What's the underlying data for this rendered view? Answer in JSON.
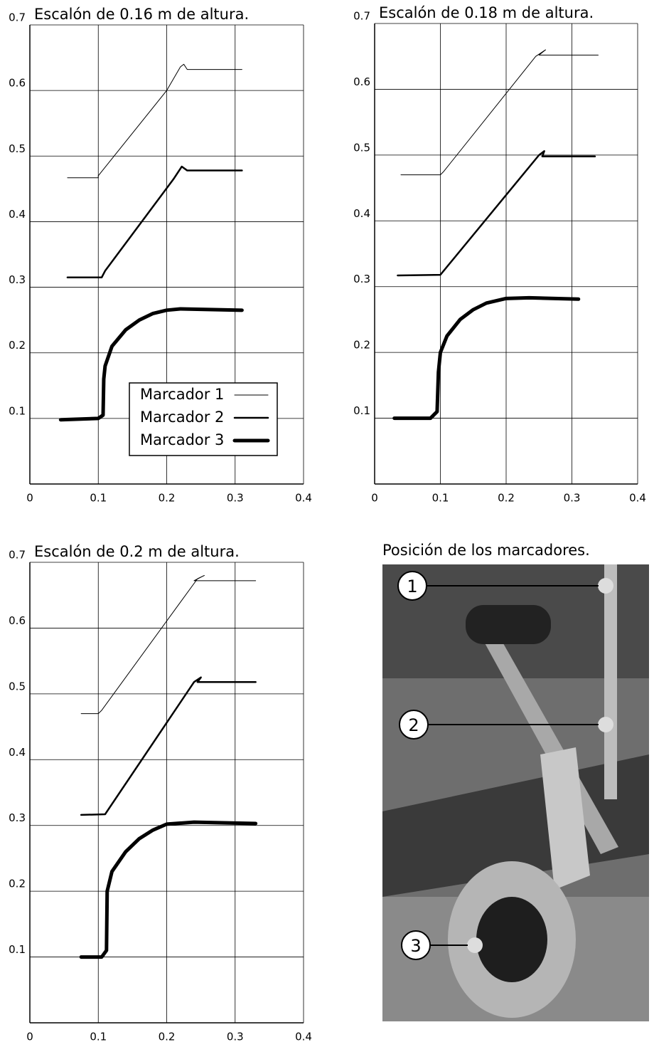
{
  "chart_data": [
    {
      "type": "line",
      "title": "Escalón de 0.16 m de altura.",
      "xlim": [
        0,
        0.4
      ],
      "ylim": [
        0,
        0.7
      ],
      "xticks": [
        0,
        0.1,
        0.2,
        0.3,
        0.4
      ],
      "yticks": [
        0.1,
        0.2,
        0.3,
        0.4,
        0.5,
        0.6,
        0.7
      ],
      "grid": true,
      "legend": "lower right",
      "series": [
        {
          "name": "Marcador 1",
          "color": "#000000",
          "line_width": 1,
          "x": [
            0.055,
            0.1,
            0.1,
            0.2,
            0.22,
            0.225,
            0.23,
            0.31
          ],
          "values": [
            0.467,
            0.467,
            0.47,
            0.6,
            0.636,
            0.64,
            0.632,
            0.632
          ]
        },
        {
          "name": "Marcador 2",
          "color": "#000000",
          "line_width": 2.5,
          "x": [
            0.055,
            0.105,
            0.11,
            0.21,
            0.222,
            0.23,
            0.31
          ],
          "values": [
            0.315,
            0.315,
            0.325,
            0.465,
            0.484,
            0.478,
            0.478
          ]
        },
        {
          "name": "Marcador 3",
          "color": "#000000",
          "line_width": 5,
          "x": [
            0.045,
            0.1,
            0.107,
            0.108,
            0.11,
            0.12,
            0.14,
            0.16,
            0.18,
            0.2,
            0.22,
            0.31
          ],
          "values": [
            0.098,
            0.1,
            0.105,
            0.16,
            0.18,
            0.21,
            0.235,
            0.25,
            0.26,
            0.265,
            0.267,
            0.265
          ]
        }
      ]
    },
    {
      "type": "line",
      "title": "Escalón de 0.18 m de altura.",
      "xlim": [
        0,
        0.4
      ],
      "ylim": [
        0,
        0.7
      ],
      "xticks": [
        0,
        0.1,
        0.2,
        0.3,
        0.4
      ],
      "yticks": [
        0.1,
        0.2,
        0.3,
        0.4,
        0.5,
        0.6,
        0.7
      ],
      "grid": true,
      "series": [
        {
          "color": "#000000",
          "line_width": 1,
          "x": [
            0.04,
            0.1,
            0.105,
            0.245,
            0.26,
            0.25,
            0.34
          ],
          "values": [
            0.47,
            0.47,
            0.475,
            0.65,
            0.66,
            0.652,
            0.652
          ]
        },
        {
          "color": "#000000",
          "line_width": 2.5,
          "x": [
            0.035,
            0.1,
            0.25,
            0.258,
            0.255,
            0.335
          ],
          "values": [
            0.317,
            0.318,
            0.5,
            0.506,
            0.498,
            0.498
          ]
        },
        {
          "color": "#000000",
          "line_width": 5,
          "x": [
            0.03,
            0.085,
            0.095,
            0.097,
            0.1,
            0.11,
            0.13,
            0.15,
            0.17,
            0.2,
            0.235,
            0.31
          ],
          "values": [
            0.1,
            0.1,
            0.11,
            0.17,
            0.2,
            0.225,
            0.25,
            0.265,
            0.275,
            0.282,
            0.283,
            0.281
          ]
        }
      ]
    },
    {
      "type": "line",
      "title": "Escalón de 0.2 m de altura.",
      "xlim": [
        0,
        0.4
      ],
      "ylim": [
        0,
        0.7
      ],
      "xticks": [
        0,
        0.1,
        0.2,
        0.3,
        0.4
      ],
      "yticks": [
        0.1,
        0.2,
        0.3,
        0.4,
        0.5,
        0.6,
        0.7
      ],
      "grid": true,
      "series": [
        {
          "color": "#000000",
          "line_width": 1,
          "x": [
            0.075,
            0.1,
            0.105,
            0.245,
            0.255,
            0.24,
            0.33
          ],
          "values": [
            0.47,
            0.47,
            0.475,
            0.675,
            0.68,
            0.672,
            0.672
          ]
        },
        {
          "color": "#000000",
          "line_width": 2.5,
          "x": [
            0.075,
            0.11,
            0.24,
            0.25,
            0.245,
            0.33
          ],
          "values": [
            0.316,
            0.317,
            0.518,
            0.525,
            0.518,
            0.518
          ]
        },
        {
          "color": "#000000",
          "line_width": 5,
          "x": [
            0.075,
            0.105,
            0.112,
            0.113,
            0.12,
            0.14,
            0.16,
            0.18,
            0.2,
            0.24,
            0.33
          ],
          "values": [
            0.1,
            0.1,
            0.11,
            0.2,
            0.23,
            0.26,
            0.28,
            0.293,
            0.302,
            0.305,
            0.303
          ]
        }
      ]
    }
  ],
  "photo": {
    "title": "Posición de los marcadores.",
    "markers": [
      "1",
      "2",
      "3"
    ]
  }
}
